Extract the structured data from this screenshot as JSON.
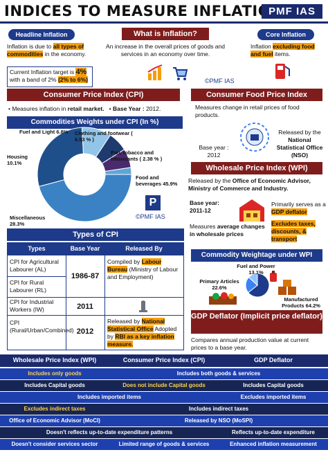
{
  "header": {
    "title": "INDICES TO MEASURE INFLATION",
    "brand": "PMF IAS"
  },
  "headline": {
    "label": "Headline Inflation",
    "text_a": "Inflation is due to ",
    "text_b": "all types of commodities",
    "text_c": " in the economy.",
    "target_a": "Current Inflation target is ",
    "target_b": "4%",
    "target_c": "with a band of 2% ",
    "target_d": "(2% to 6%)"
  },
  "what": {
    "label": "What is Inflation?",
    "text": "An increase in the overall prices of goods and services in an economy over time."
  },
  "core": {
    "label": "Core Inflation",
    "text_a": "Inflation ",
    "text_b": "excluding food and fuel",
    "text_c": " items."
  },
  "watermark": "©PMF IAS",
  "cpi": {
    "label": "Consumer Price Index (CPI)",
    "point1_a": "Measures inflation in ",
    "point1_b": "retail market.",
    "point2_a": "Base Year : ",
    "point2_b": "2012."
  },
  "cfpi": {
    "label": "Consumer Food Price Index",
    "text": "Measures change in retail prices of food products.",
    "base_label": "Base year :",
    "base_value": "2012",
    "released_a": "Released by the",
    "released_b": "National Statistical Office (NSO)"
  },
  "weights": {
    "label": "Commodities Weights under CPI (In %)"
  },
  "chart_data": [
    {
      "type": "pie",
      "title": "Commodities Weights under CPI (In %)",
      "categories": [
        "Food and beverages",
        "Miscellaneous",
        "Housing",
        "Fuel and Light",
        "Clothing and footwear",
        "Pan, tobacco and intoxicants"
      ],
      "values": [
        45.9,
        28.3,
        10.1,
        6.8,
        6.53,
        2.38
      ],
      "colors": [
        "#3b82c4",
        "#1f4f8a",
        "#93c5e8",
        "#1e3a6e",
        "#4a2a6e",
        "#60a5d8"
      ],
      "labels": [
        "Food and beverages 45.9%",
        "Miscellaneous 28.3%",
        "Housing 10.1%",
        "Fuel and Light 6.8%",
        "Clothing and footwear ( 6.53 % )",
        "Pan, tobacco and intoxicants ( 2.38 % )"
      ]
    },
    {
      "type": "pie",
      "title": "Commodity Weightage under WPI",
      "categories": [
        "Manufactured Products",
        "Primary Articles",
        "Fuel and Power"
      ],
      "values": [
        64.2,
        22.6,
        13.1
      ],
      "colors": [
        "#1e3a8a",
        "#3b82f6",
        "#93c5fd"
      ],
      "labels": [
        "Manufactured Products 64.2%",
        "Primary Articles 22.6%",
        "Fuel and Power 13.1%"
      ]
    }
  ],
  "wpi": {
    "label": "Wholesale Price Index (WPI)",
    "released_a": "Released by the ",
    "released_b": "Office of Economic Advisor, Ministry of Commerce and Industry.",
    "base_label": "Base year:",
    "base_value": "2011-12",
    "serves_a": "Primarily serves as a ",
    "serves_b": "GDP deflator",
    "excludes": "Excludes taxes, discounts, & transport",
    "measures_a": "Measures ",
    "measures_b": "average changes in wholesale prices"
  },
  "wpi_weights": {
    "label": "Commodity Weightage under WPI"
  },
  "types": {
    "label": "Types of CPI",
    "headers": [
      "Types",
      "Base Year",
      "Released By"
    ],
    "rows": [
      {
        "type": "CPI for Agricultural Labourer (AL)"
      },
      {
        "type": "CPI for Rural Labourer (RL)"
      },
      {
        "type": "CPI for Industrial Workers (IW)"
      },
      {
        "type": "CPI (Rural/Urban/Combined)"
      }
    ],
    "year1": "1986-87",
    "year2": "2011",
    "year3": "2012",
    "rel1_a": "Compiled by ",
    "rel1_b": "Labour Bureau",
    "rel1_c": " (Ministry of Labour and Employment)",
    "rel2_a": "Released by ",
    "rel2_b": "National Statistical Office",
    "rel2_c": " Adopted by ",
    "rel2_d": "RBI as a key inflation measure."
  },
  "gdp": {
    "label": "GDP Deflator (Implicit price deflator)",
    "text": "Compares annual production value at current prices to a base year."
  },
  "compare": {
    "headers": [
      "Wholesale Price Index (WPI)",
      "Consumer Price Index (CPI)",
      "GDP Deflator"
    ],
    "r1a": "Includes only goods",
    "r1b": "Includes both goods & services",
    "r2a": "Includes Capital goods",
    "r2b": "Does not include Capital goods",
    "r2c": "Includes Capital goods",
    "r3a": "Includes imported items",
    "r3c": "Excludes imported items",
    "r4a": "Excludes indirect taxes",
    "r4b": "Includes indirect taxes",
    "r5a": "Office of Economic Advisor (MoCI)",
    "r5b": "Released by NSO (MoSPI)",
    "r6a": "Doesn't reflects up-to-date expenditure patterns",
    "r6c": "Reflects up-to-date expenditure",
    "r7a": "Doesn't consider services sector",
    "r7b": "Limited range of goods & services",
    "r7c": "Enhanced inflation measurement"
  }
}
